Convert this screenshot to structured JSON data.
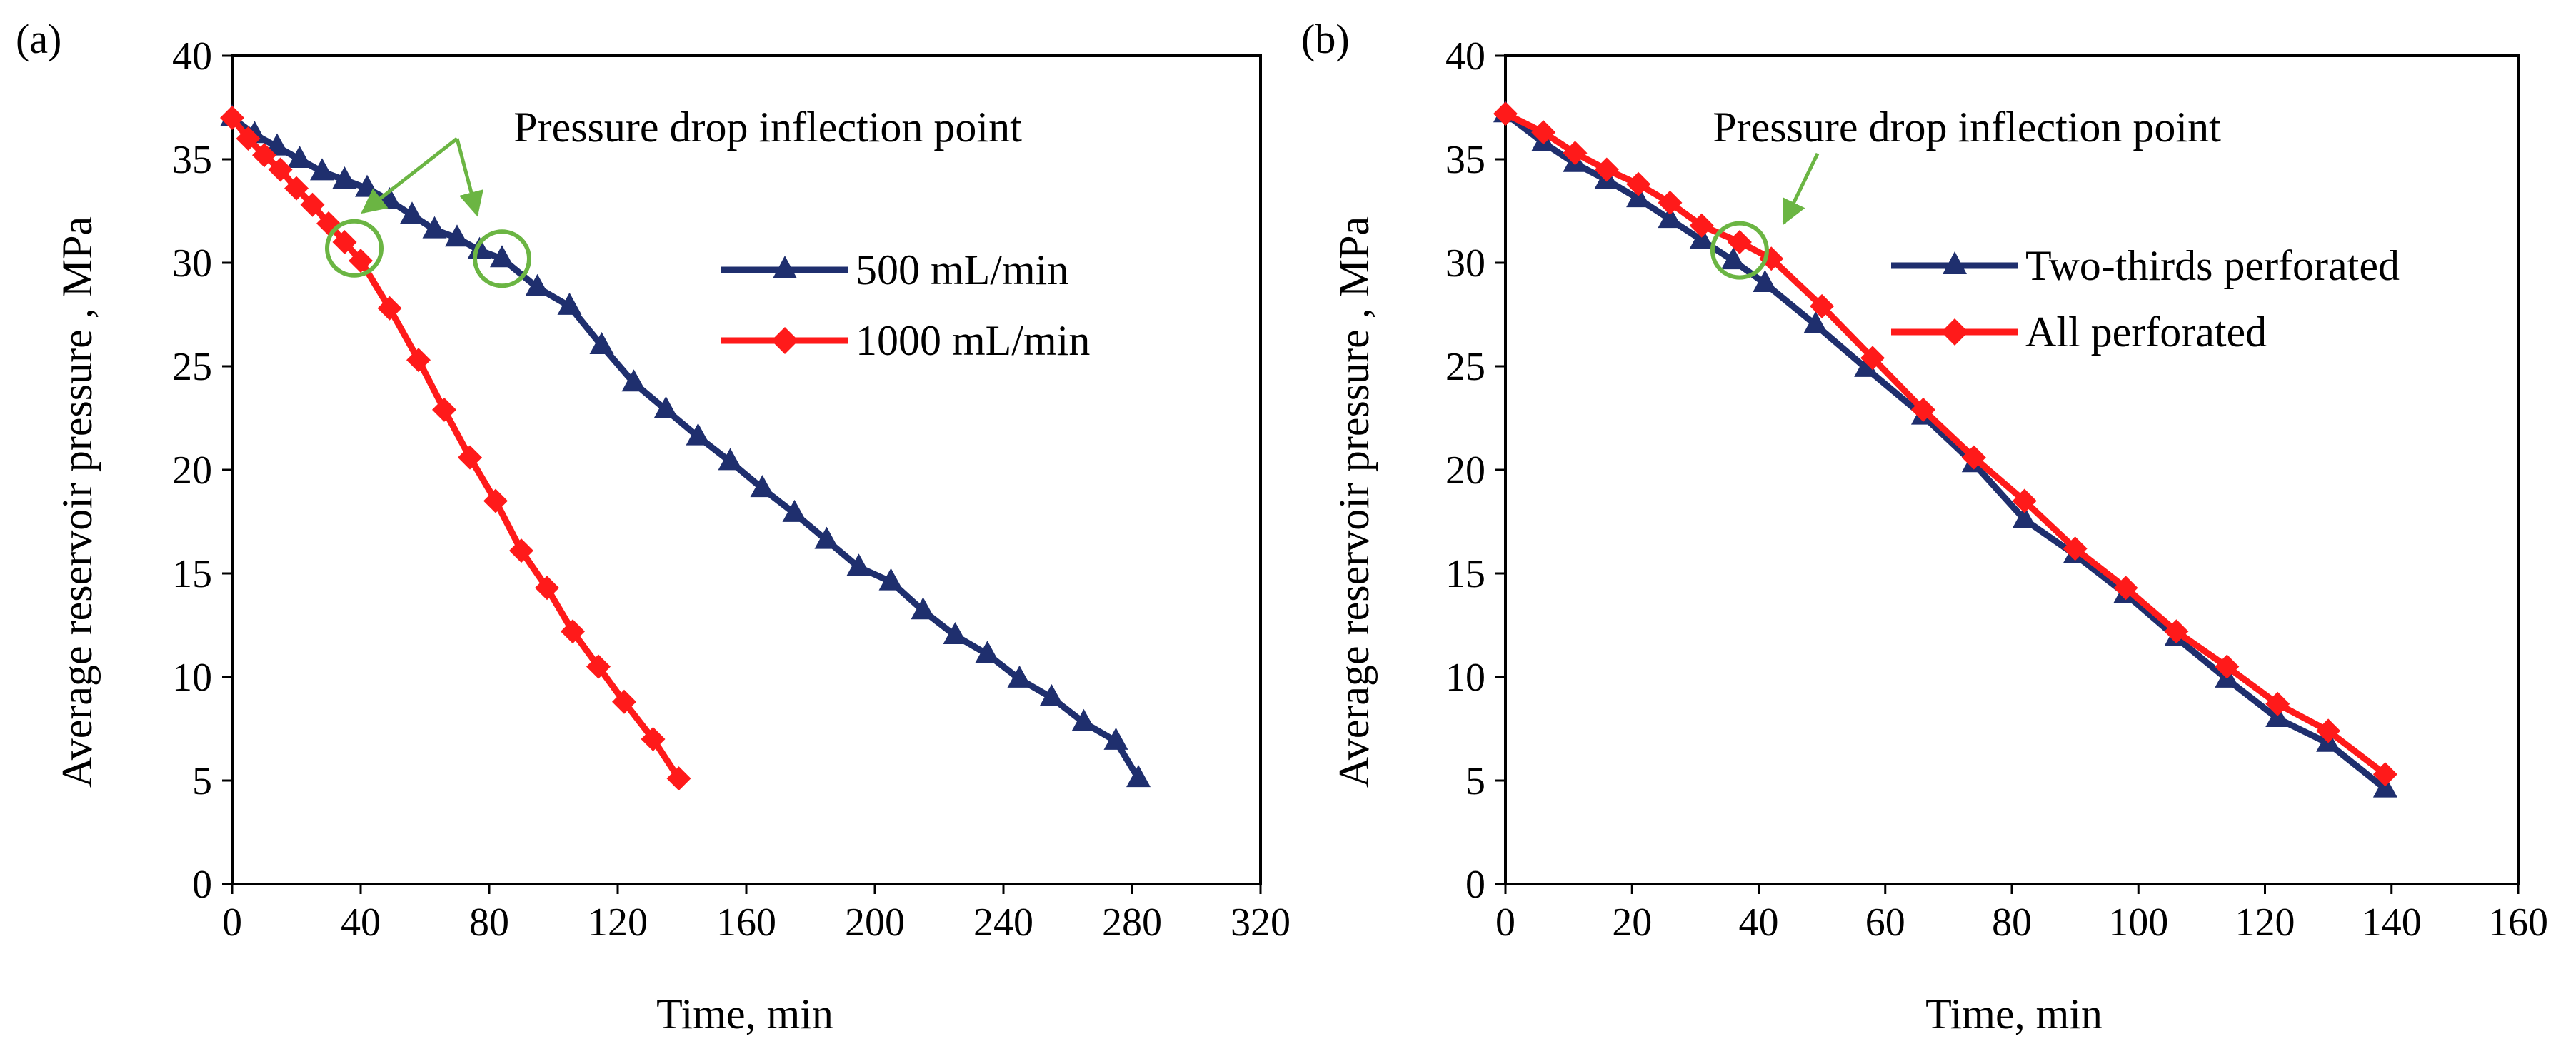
{
  "chart_data": [
    {
      "type": "line",
      "panel_label": "(a)",
      "xlabel": "Time, min",
      "ylabel": "Average reservoir pressure , MPa",
      "xlim": [
        0,
        320
      ],
      "ylim": [
        0,
        40
      ],
      "xticks": [
        0,
        40,
        80,
        120,
        160,
        200,
        240,
        280,
        320
      ],
      "yticks": [
        0,
        5,
        10,
        15,
        20,
        25,
        30,
        35,
        40
      ],
      "grid": false,
      "legend_position": "right",
      "annotation": {
        "text": "Pressure drop inflection point",
        "points": [
          [
            38,
            30.7
          ],
          [
            84,
            30.2
          ]
        ]
      },
      "series": [
        {
          "name": "500 mL/min",
          "color": "#1F2F6E",
          "marker": "triangle",
          "x": [
            0,
            7,
            14,
            21,
            28,
            35,
            42,
            49,
            56,
            63,
            70,
            77,
            84,
            95,
            105,
            115,
            125,
            135,
            145,
            155,
            165,
            175,
            185,
            195,
            205,
            215,
            225,
            235,
            245,
            255,
            265,
            275,
            282
          ],
          "y": [
            37,
            36.2,
            35.6,
            35.0,
            34.4,
            34.0,
            33.6,
            33.0,
            32.3,
            31.6,
            31.2,
            30.6,
            30.2,
            28.8,
            27.9,
            26.0,
            24.2,
            22.9,
            21.6,
            20.4,
            19.1,
            17.9,
            16.6,
            15.3,
            14.6,
            13.2,
            12.0,
            11.1,
            9.9,
            9.0,
            7.8,
            6.9,
            5.1
          ]
        },
        {
          "name": "1000 mL/min",
          "color": "#FF1A1A",
          "marker": "diamond",
          "x": [
            0,
            5,
            10,
            15,
            20,
            25,
            30,
            35,
            40,
            49,
            58,
            66,
            74,
            82,
            90,
            98,
            106,
            114,
            122,
            131,
            139
          ],
          "y": [
            37,
            36.0,
            35.2,
            34.5,
            33.6,
            32.8,
            31.9,
            31.0,
            30.1,
            27.8,
            25.3,
            22.9,
            20.6,
            18.5,
            16.1,
            14.3,
            12.2,
            10.5,
            8.8,
            7.0,
            5.1
          ]
        }
      ]
    },
    {
      "type": "line",
      "panel_label": "(b)",
      "xlabel": "Time, min",
      "ylabel": "Average reservoir pressure , MPa",
      "xlim": [
        0,
        160
      ],
      "ylim": [
        0,
        40
      ],
      "xticks": [
        0,
        20,
        40,
        60,
        80,
        100,
        120,
        140,
        160
      ],
      "yticks": [
        0,
        5,
        10,
        15,
        20,
        25,
        30,
        35,
        40
      ],
      "grid": false,
      "legend_position": "right",
      "annotation": {
        "text": "Pressure drop inflection point",
        "points": [
          [
            37,
            30.6
          ]
        ]
      },
      "series": [
        {
          "name": "Two-thirds perforated",
          "color": "#1F2F6E",
          "marker": "triangle",
          "x": [
            0,
            6,
            11,
            16,
            21,
            26,
            31,
            36,
            41,
            49,
            57,
            66,
            74,
            82,
            90,
            98,
            106,
            114,
            122,
            130,
            139
          ],
          "y": [
            37.2,
            35.8,
            34.8,
            34.0,
            33.1,
            32.1,
            31.1,
            30.1,
            29.0,
            27.0,
            24.9,
            22.6,
            20.3,
            17.6,
            15.9,
            14.0,
            11.9,
            9.9,
            8.0,
            6.8,
            4.6
          ]
        },
        {
          "name": "All perforated",
          "color": "#FF1A1A",
          "marker": "diamond",
          "x": [
            0,
            6,
            11,
            16,
            21,
            26,
            31,
            37,
            42,
            50,
            58,
            66,
            74,
            82,
            90,
            98,
            106,
            114,
            122,
            130,
            139
          ],
          "y": [
            37.2,
            36.3,
            35.3,
            34.5,
            33.8,
            32.9,
            31.8,
            31.0,
            30.2,
            27.9,
            25.4,
            22.9,
            20.6,
            18.5,
            16.2,
            14.3,
            12.2,
            10.5,
            8.7,
            7.4,
            5.3
          ]
        }
      ]
    }
  ]
}
